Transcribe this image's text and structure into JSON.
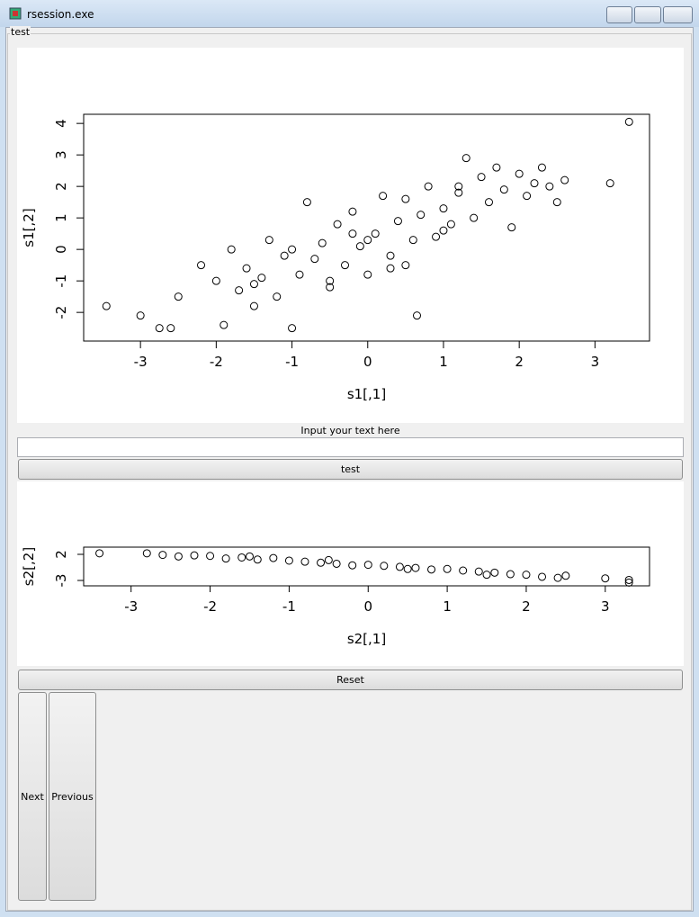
{
  "window": {
    "title": "rsession.exe"
  },
  "frame": {
    "label": "test"
  },
  "chart_data": [
    {
      "type": "scatter",
      "xlabel": "s1[,1]",
      "ylabel": "s1[,2]",
      "xlim": [
        -3.75,
        3.72
      ],
      "ylim": [
        -2.91,
        4.29
      ],
      "xticks": [
        -3,
        -2,
        -1,
        0,
        1,
        2,
        3
      ],
      "yticks": [
        -2,
        -1,
        0,
        1,
        2,
        3,
        4
      ],
      "color": "#000000",
      "x": [
        -3.45,
        -3.0,
        -2.75,
        -2.6,
        -2.5,
        -2.2,
        -2.0,
        -1.9,
        -1.8,
        -1.7,
        -1.6,
        -1.5,
        -1.4,
        -1.3,
        -1.2,
        -1.1,
        -1.0,
        -0.9,
        -0.8,
        -0.7,
        -0.6,
        -0.5,
        -0.4,
        -0.3,
        -0.2,
        -0.1,
        0.0,
        0.1,
        0.2,
        0.3,
        0.4,
        0.5,
        0.6,
        0.7,
        0.8,
        0.9,
        1.0,
        1.1,
        1.2,
        1.3,
        1.4,
        1.5,
        1.6,
        1.7,
        1.8,
        1.9,
        2.0,
        2.1,
        2.2,
        2.3,
        2.4,
        2.5,
        2.6,
        3.2,
        3.45,
        -1.0,
        -0.5,
        0.0,
        0.5,
        1.0,
        -1.5,
        0.65,
        1.2,
        -0.2,
        0.3
      ],
      "y": [
        -1.8,
        -2.1,
        -2.5,
        -2.5,
        -1.5,
        -0.5,
        -1.0,
        -2.4,
        0.0,
        -1.3,
        -0.6,
        -1.8,
        -0.9,
        0.3,
        -1.5,
        -0.2,
        -2.5,
        -0.8,
        1.5,
        -0.3,
        0.2,
        -1.0,
        0.8,
        -0.5,
        1.2,
        0.1,
        -0.8,
        0.5,
        1.7,
        -0.2,
        0.9,
        1.6,
        0.3,
        1.1,
        2.0,
        0.4,
        1.3,
        0.8,
        1.8,
        2.9,
        1.0,
        2.3,
        1.5,
        2.6,
        1.9,
        0.7,
        2.4,
        1.7,
        2.1,
        2.6,
        2.0,
        1.5,
        2.2,
        2.1,
        4.05,
        0.0,
        -1.2,
        0.3,
        -0.5,
        0.6,
        -1.1,
        -2.1,
        2.0,
        0.5,
        -0.6
      ]
    },
    {
      "type": "scatter",
      "xlabel": "s2[,1]",
      "ylabel": "s2[,2]",
      "xlim": [
        -3.6,
        3.56
      ],
      "ylim": [
        -4.03,
        3.38
      ],
      "xticks": [
        -3,
        -2,
        -1,
        0,
        1,
        2,
        3
      ],
      "yticks": [
        -3,
        2
      ],
      "color": "#000000",
      "x": [
        -3.4,
        -2.8,
        -2.6,
        -2.4,
        -2.2,
        -2.0,
        -1.8,
        -1.6,
        -1.4,
        -1.2,
        -1.0,
        -0.8,
        -0.6,
        -0.4,
        -0.2,
        0.0,
        0.2,
        0.4,
        0.6,
        0.8,
        1.0,
        1.2,
        1.4,
        1.6,
        1.8,
        2.0,
        2.2,
        2.4,
        2.5,
        3.0,
        3.3,
        3.3,
        -1.5,
        -0.5,
        0.5,
        1.5
      ],
      "y": [
        2.2,
        2.2,
        1.9,
        1.6,
        1.8,
        1.7,
        1.2,
        1.4,
        1.0,
        1.3,
        0.8,
        0.6,
        0.4,
        0.2,
        -0.1,
        0.0,
        -0.2,
        -0.4,
        -0.6,
        -0.9,
        -0.8,
        -1.1,
        -1.3,
        -1.5,
        -1.8,
        -1.9,
        -2.3,
        -2.5,
        -2.1,
        -2.6,
        -2.9,
        -3.4,
        1.6,
        0.9,
        -0.8,
        -1.9
      ]
    }
  ],
  "input": {
    "label": "Input your text here"
  },
  "buttons": {
    "test": "test",
    "reset": "Reset",
    "next": "Next",
    "previous": "Previous"
  }
}
